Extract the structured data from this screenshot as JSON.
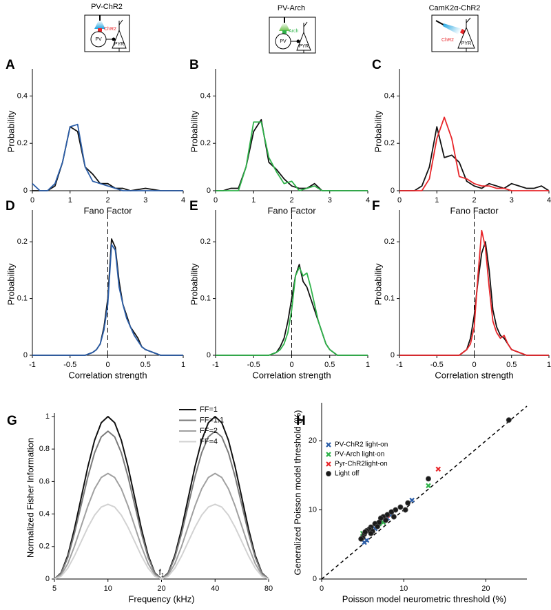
{
  "chart_data": [
    {
      "type": "line",
      "panel": "A",
      "icon": {
        "title": "PV-ChR2",
        "labels": [
          "ChR2",
          "PV",
          "PYR"
        ]
      },
      "xlabel": "Fano Factor",
      "ylabel": "Probability",
      "x": [
        0,
        0.2,
        0.4,
        0.6,
        0.8,
        1,
        1.2,
        1.4,
        1.6,
        1.8,
        2,
        2.2,
        2.4,
        2.6,
        2.8,
        3,
        3.2,
        3.4,
        3.6,
        3.8,
        4
      ],
      "series": [
        {
          "color": "#111111",
          "values": [
            0,
            0,
            0,
            0.02,
            0.12,
            0.27,
            0.25,
            0.1,
            0.07,
            0.03,
            0.03,
            0.01,
            0.01,
            0,
            0.005,
            0.01,
            0.005,
            0,
            0,
            0,
            0
          ]
        },
        {
          "color": "#2c5ea8",
          "values": [
            0.03,
            0,
            0,
            0.03,
            0.12,
            0.27,
            0.28,
            0.1,
            0.04,
            0.03,
            0.02,
            0.01,
            0,
            0,
            0,
            0,
            0,
            0,
            0,
            0,
            0
          ]
        }
      ],
      "xlim": [
        0,
        4
      ],
      "ylim": [
        0,
        0.5
      ],
      "xticks": [
        0,
        1,
        2,
        3,
        4
      ],
      "yticks": [
        0,
        0.2,
        0.4
      ]
    },
    {
      "type": "line",
      "panel": "B",
      "icon": {
        "title": "PV-Arch",
        "labels": [
          "Arch",
          "PV",
          "PYR"
        ]
      },
      "xlabel": "Fano Factor",
      "ylabel": "Probability",
      "x": [
        0,
        0.2,
        0.4,
        0.6,
        0.8,
        1,
        1.2,
        1.4,
        1.6,
        1.8,
        2,
        2.2,
        2.4,
        2.6,
        2.8,
        3,
        3.2,
        3.4,
        3.6,
        3.8,
        4
      ],
      "series": [
        {
          "color": "#111111",
          "values": [
            0,
            0,
            0.01,
            0.01,
            0.1,
            0.25,
            0.3,
            0.12,
            0.09,
            0.05,
            0.02,
            0.01,
            0.01,
            0.03,
            0,
            0,
            0,
            0,
            0,
            0,
            0
          ]
        },
        {
          "color": "#2fb34a",
          "values": [
            0,
            0,
            0,
            0,
            0.1,
            0.29,
            0.29,
            0.14,
            0.08,
            0.03,
            0.04,
            0,
            0.01,
            0.02,
            0,
            0,
            0,
            0,
            0,
            0,
            0
          ]
        }
      ],
      "xlim": [
        0,
        4
      ],
      "ylim": [
        0,
        0.5
      ],
      "xticks": [
        0,
        1,
        2,
        3,
        4
      ],
      "yticks": [
        0,
        0.2,
        0.4
      ]
    },
    {
      "type": "line",
      "panel": "C",
      "icon": {
        "title": "CamK2α-ChR2",
        "labels": [
          "ChR2",
          "PYR"
        ]
      },
      "xlabel": "Fano Factor",
      "ylabel": "Probability",
      "x": [
        0,
        0.2,
        0.4,
        0.6,
        0.8,
        1,
        1.2,
        1.4,
        1.6,
        1.8,
        2,
        2.2,
        2.4,
        2.6,
        2.8,
        3,
        3.2,
        3.4,
        3.6,
        3.8,
        4
      ],
      "series": [
        {
          "color": "#111111",
          "values": [
            0,
            0,
            0,
            0.02,
            0.1,
            0.27,
            0.14,
            0.15,
            0.12,
            0.04,
            0.02,
            0.01,
            0.03,
            0.02,
            0.01,
            0.03,
            0.02,
            0.01,
            0.01,
            0.02,
            0
          ]
        },
        {
          "color": "#e8262a",
          "values": [
            0,
            0,
            0,
            0,
            0.05,
            0.22,
            0.31,
            0.22,
            0.06,
            0.05,
            0.03,
            0.02,
            0.02,
            0.01,
            0.01,
            0,
            0,
            0,
            0,
            0,
            0
          ]
        }
      ],
      "xlim": [
        0,
        4
      ],
      "ylim": [
        0,
        0.5
      ],
      "xticks": [
        0,
        1,
        2,
        3,
        4
      ],
      "yticks": [
        0,
        0.2,
        0.4
      ]
    },
    {
      "type": "line",
      "panel": "D",
      "xlabel": "Correlation strength",
      "ylabel": "Probability",
      "vline": 0,
      "x": [
        -1,
        -0.3,
        -0.2,
        -0.15,
        -0.1,
        -0.05,
        0,
        0.05,
        0.1,
        0.15,
        0.2,
        0.25,
        0.3,
        0.35,
        0.4,
        0.45,
        0.5,
        0.6,
        0.7,
        1
      ],
      "series": [
        {
          "color": "#111111",
          "values": [
            0,
            0,
            0.005,
            0.01,
            0.02,
            0.05,
            0.1,
            0.205,
            0.19,
            0.13,
            0.09,
            0.07,
            0.05,
            0.04,
            0.03,
            0.015,
            0.01,
            0.005,
            0,
            0
          ]
        },
        {
          "color": "#2c5ea8",
          "values": [
            0,
            0,
            0.005,
            0.01,
            0.02,
            0.045,
            0.09,
            0.195,
            0.185,
            0.12,
            0.09,
            0.065,
            0.05,
            0.035,
            0.025,
            0.015,
            0.01,
            0.005,
            0,
            0
          ]
        }
      ],
      "xlim": [
        -1,
        1
      ],
      "ylim": [
        0,
        0.25
      ],
      "xticks": [
        -1,
        -0.5,
        0,
        0.5,
        1
      ],
      "yticks": [
        0,
        0.1,
        0.2
      ]
    },
    {
      "type": "line",
      "panel": "E",
      "xlabel": "Correlation strength",
      "ylabel": "Probability",
      "vline": 0,
      "x": [
        -1,
        -0.3,
        -0.2,
        -0.15,
        -0.1,
        -0.05,
        0,
        0.05,
        0.1,
        0.15,
        0.2,
        0.25,
        0.3,
        0.35,
        0.4,
        0.45,
        0.5,
        0.6,
        0.7,
        1
      ],
      "series": [
        {
          "color": "#111111",
          "values": [
            0,
            0,
            0.005,
            0.015,
            0.03,
            0.06,
            0.1,
            0.14,
            0.16,
            0.13,
            0.12,
            0.1,
            0.08,
            0.06,
            0.04,
            0.02,
            0.01,
            0,
            0,
            0
          ]
        },
        {
          "color": "#2fb34a",
          "values": [
            0,
            0,
            0.005,
            0.01,
            0.02,
            0.04,
            0.08,
            0.14,
            0.155,
            0.14,
            0.145,
            0.12,
            0.09,
            0.06,
            0.04,
            0.02,
            0.01,
            0,
            0,
            0
          ]
        }
      ],
      "xlim": [
        -1,
        1
      ],
      "ylim": [
        0,
        0.25
      ],
      "xticks": [
        -1,
        -0.5,
        0,
        0.5,
        1
      ],
      "yticks": [
        0,
        0.1,
        0.2
      ]
    },
    {
      "type": "line",
      "panel": "F",
      "xlabel": "Correlation strength",
      "ylabel": "Probability",
      "vline": 0,
      "x": [
        -1,
        -0.3,
        -0.2,
        -0.15,
        -0.1,
        -0.05,
        0,
        0.05,
        0.1,
        0.15,
        0.2,
        0.25,
        0.3,
        0.35,
        0.4,
        0.45,
        0.5,
        0.6,
        0.7,
        1
      ],
      "series": [
        {
          "color": "#111111",
          "values": [
            0,
            0,
            0,
            0.005,
            0.01,
            0.03,
            0.07,
            0.13,
            0.18,
            0.2,
            0.15,
            0.08,
            0.05,
            0.035,
            0.03,
            0.02,
            0.01,
            0.005,
            0,
            0
          ]
        },
        {
          "color": "#e8262a",
          "values": [
            0,
            0,
            0,
            0.005,
            0.01,
            0.02,
            0.05,
            0.14,
            0.22,
            0.19,
            0.12,
            0.06,
            0.04,
            0.03,
            0.035,
            0.02,
            0.01,
            0.005,
            0,
            0
          ]
        }
      ],
      "xlim": [
        -1,
        1
      ],
      "ylim": [
        0,
        0.25
      ],
      "xticks": [
        -1,
        -0.5,
        0,
        0.5,
        1
      ],
      "yticks": [
        0,
        0.1,
        0.2
      ]
    },
    {
      "type": "line",
      "panel": "G",
      "xlabel": "Frequency (kHz)",
      "ylabel": "Normalized Fisher Information",
      "xscale": "log",
      "legend": "upper right",
      "annotation": {
        "text": "f",
        "subscript": "1",
        "x": 20
      },
      "x": [
        5,
        5.45,
        5.95,
        6.48,
        7.07,
        7.71,
        8.41,
        9.17,
        10,
        10.91,
        11.89,
        12.97,
        14.14,
        15.42,
        16.82,
        18.34,
        20,
        21.81,
        23.78,
        25.94,
        28.28,
        30.84,
        33.64,
        36.68,
        40,
        43.62,
        47.57,
        51.87,
        56.57,
        61.69,
        67.27,
        73.36,
        80
      ],
      "series": [
        {
          "name": "FF=1",
          "color": "#111111",
          "values": [
            0,
            0.038,
            0.146,
            0.309,
            0.5,
            0.691,
            0.854,
            0.962,
            1,
            0.962,
            0.854,
            0.691,
            0.5,
            0.309,
            0.146,
            0.038,
            0,
            0.038,
            0.146,
            0.309,
            0.5,
            0.691,
            0.854,
            0.962,
            1,
            0.962,
            0.854,
            0.691,
            0.5,
            0.309,
            0.146,
            0.038,
            0
          ]
        },
        {
          "name": "FF=1.1",
          "color": "#7a7a7a",
          "values": [
            0,
            0.035,
            0.133,
            0.281,
            0.455,
            0.629,
            0.777,
            0.875,
            0.91,
            0.875,
            0.777,
            0.629,
            0.455,
            0.281,
            0.133,
            0.035,
            0,
            0.035,
            0.133,
            0.281,
            0.455,
            0.629,
            0.777,
            0.875,
            0.91,
            0.875,
            0.777,
            0.629,
            0.455,
            0.281,
            0.133,
            0.035,
            0
          ]
        },
        {
          "name": "FF=2",
          "color": "#a0a0a0",
          "values": [
            0,
            0.025,
            0.095,
            0.201,
            0.325,
            0.449,
            0.555,
            0.625,
            0.65,
            0.625,
            0.555,
            0.449,
            0.325,
            0.201,
            0.095,
            0.025,
            0,
            0.025,
            0.095,
            0.201,
            0.325,
            0.449,
            0.555,
            0.625,
            0.65,
            0.625,
            0.555,
            0.449,
            0.325,
            0.201,
            0.095,
            0.025,
            0
          ]
        },
        {
          "name": "FF=4",
          "color": "#d2d2d2",
          "values": [
            0,
            0.017,
            0.067,
            0.142,
            0.23,
            0.318,
            0.393,
            0.443,
            0.46,
            0.443,
            0.393,
            0.318,
            0.23,
            0.142,
            0.067,
            0.017,
            0,
            0.017,
            0.067,
            0.142,
            0.23,
            0.318,
            0.393,
            0.443,
            0.46,
            0.443,
            0.393,
            0.318,
            0.23,
            0.142,
            0.067,
            0.017,
            0
          ]
        }
      ],
      "xlim": [
        5,
        80
      ],
      "ylim": [
        0,
        1
      ],
      "xticks": [
        5,
        10,
        20,
        40,
        80
      ],
      "yticks": [
        0,
        0.2,
        0.4,
        0.6,
        0.8,
        1
      ]
    },
    {
      "type": "scatter",
      "panel": "H",
      "xlabel": "Poisson model neurometric threshold (%)",
      "ylabel": "Generalized Poisson model threshold (%)",
      "legend": "upper left",
      "diagonal": true,
      "series": [
        {
          "name": "PV-ChR2 light-on",
          "color": "#2c5ea8",
          "marker": "x",
          "x": [
            11,
            5.5,
            5.2,
            6.5,
            8,
            8.5
          ],
          "values": [
            11.4,
            5.6,
            5.3,
            7.3,
            8.8,
            9.3
          ]
        },
        {
          "name": "PV-Arch light-on",
          "color": "#2fb34a",
          "marker": "x",
          "x": [
            13,
            5,
            7,
            7.5
          ],
          "values": [
            13.5,
            6.6,
            8,
            8.2
          ]
        },
        {
          "name": "Pyr-ChR2light-on",
          "color": "#e8262a",
          "marker": "x",
          "x": [
            14.2,
            8
          ],
          "values": [
            15.9,
            9.2
          ]
        },
        {
          "name": "Light off",
          "color": "#1a1a1a",
          "marker": "o",
          "x": [
            22.8,
            13,
            10.5,
            9,
            8.5,
            8,
            7.5,
            7.2,
            7,
            6.5,
            6,
            5.8,
            5.5,
            5.2,
            5,
            5.3,
            6.2,
            6.8,
            7.8,
            8.8,
            9.6,
            10.2,
            4.8,
            6
          ],
          "values": [
            23,
            14.5,
            11,
            10,
            9.7,
            9.3,
            9,
            8.8,
            8.2,
            8,
            7.5,
            7.2,
            7,
            6.5,
            6,
            6.8,
            6.9,
            7.6,
            8.5,
            9,
            10.4,
            10,
            5.8,
            6.6
          ]
        }
      ],
      "xlim": [
        0,
        25
      ],
      "ylim": [
        0,
        25
      ],
      "xticks": [
        0,
        10,
        20
      ],
      "yticks": [
        0,
        10,
        20
      ]
    }
  ]
}
